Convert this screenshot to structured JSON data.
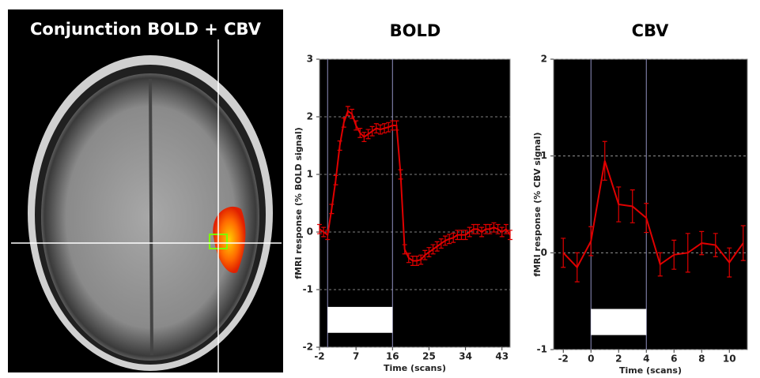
{
  "panel_title": "Conjunction BOLD + CBV",
  "chart_data": [
    {
      "type": "line",
      "title": "BOLD",
      "xlabel": "Time (scans)",
      "ylabel": "fMRI response (% BOLD signal)",
      "color": "#e00000",
      "grid": true,
      "stimulus": [
        0,
        16
      ],
      "xlim": [
        -2,
        45
      ],
      "ylim": [
        -2,
        3
      ],
      "xticks": [
        -2,
        7,
        16,
        25,
        34,
        43
      ],
      "yticks": [
        -2,
        -1,
        0,
        1,
        2,
        3
      ],
      "x": [
        -2,
        -1,
        0,
        1,
        2,
        3,
        4,
        5,
        6,
        7,
        8,
        9,
        10,
        11,
        12,
        13,
        14,
        15,
        16,
        17,
        18,
        19,
        20,
        21,
        22,
        23,
        24,
        25,
        26,
        27,
        28,
        29,
        30,
        31,
        32,
        33,
        34,
        35,
        36,
        37,
        38,
        39,
        40,
        41,
        42,
        43,
        44,
        45
      ],
      "values": [
        0.05,
        0.0,
        -0.05,
        0.4,
        0.9,
        1.5,
        1.9,
        2.1,
        2.05,
        1.85,
        1.72,
        1.65,
        1.7,
        1.75,
        1.8,
        1.78,
        1.8,
        1.82,
        1.85,
        1.85,
        1.0,
        -0.3,
        -0.45,
        -0.5,
        -0.5,
        -0.48,
        -0.4,
        -0.35,
        -0.3,
        -0.25,
        -0.2,
        -0.15,
        -0.12,
        -0.1,
        -0.05,
        -0.05,
        -0.05,
        0.0,
        0.05,
        0.05,
        0.0,
        0.05,
        0.05,
        0.08,
        0.05,
        0.0,
        0.05,
        -0.05
      ],
      "errors": [
        0.08,
        0.08,
        0.08,
        0.08,
        0.08,
        0.08,
        0.08,
        0.08,
        0.08,
        0.08,
        0.08,
        0.08,
        0.08,
        0.08,
        0.08,
        0.08,
        0.08,
        0.08,
        0.08,
        0.08,
        0.08,
        0.08,
        0.08,
        0.08,
        0.08,
        0.08,
        0.08,
        0.08,
        0.08,
        0.08,
        0.08,
        0.08,
        0.08,
        0.08,
        0.08,
        0.08,
        0.08,
        0.08,
        0.08,
        0.08,
        0.08,
        0.08,
        0.08,
        0.08,
        0.08,
        0.08,
        0.08,
        0.08
      ]
    },
    {
      "type": "line",
      "title": "CBV",
      "xlabel": "Time (scans)",
      "ylabel": "fMRI response (% CBV signal)",
      "color": "#e00000",
      "grid": true,
      "stimulus": [
        0,
        4
      ],
      "xlim": [
        -2.7,
        11.3
      ],
      "ylim": [
        -1,
        2
      ],
      "xticks": [
        -2,
        0,
        2,
        4,
        6,
        8,
        10
      ],
      "yticks": [
        -1,
        0,
        1,
        2
      ],
      "x": [
        -2,
        -1,
        0,
        1,
        2,
        3,
        4,
        5,
        6,
        7,
        8,
        9,
        10,
        11
      ],
      "values": [
        0.0,
        -0.15,
        0.12,
        0.95,
        0.5,
        0.48,
        0.36,
        -0.12,
        -0.02,
        0.0,
        0.1,
        0.08,
        -0.1,
        0.1
      ],
      "errors": [
        0.15,
        0.15,
        0.15,
        0.2,
        0.18,
        0.17,
        0.15,
        0.12,
        0.15,
        0.2,
        0.12,
        0.12,
        0.15,
        0.18
      ]
    }
  ]
}
